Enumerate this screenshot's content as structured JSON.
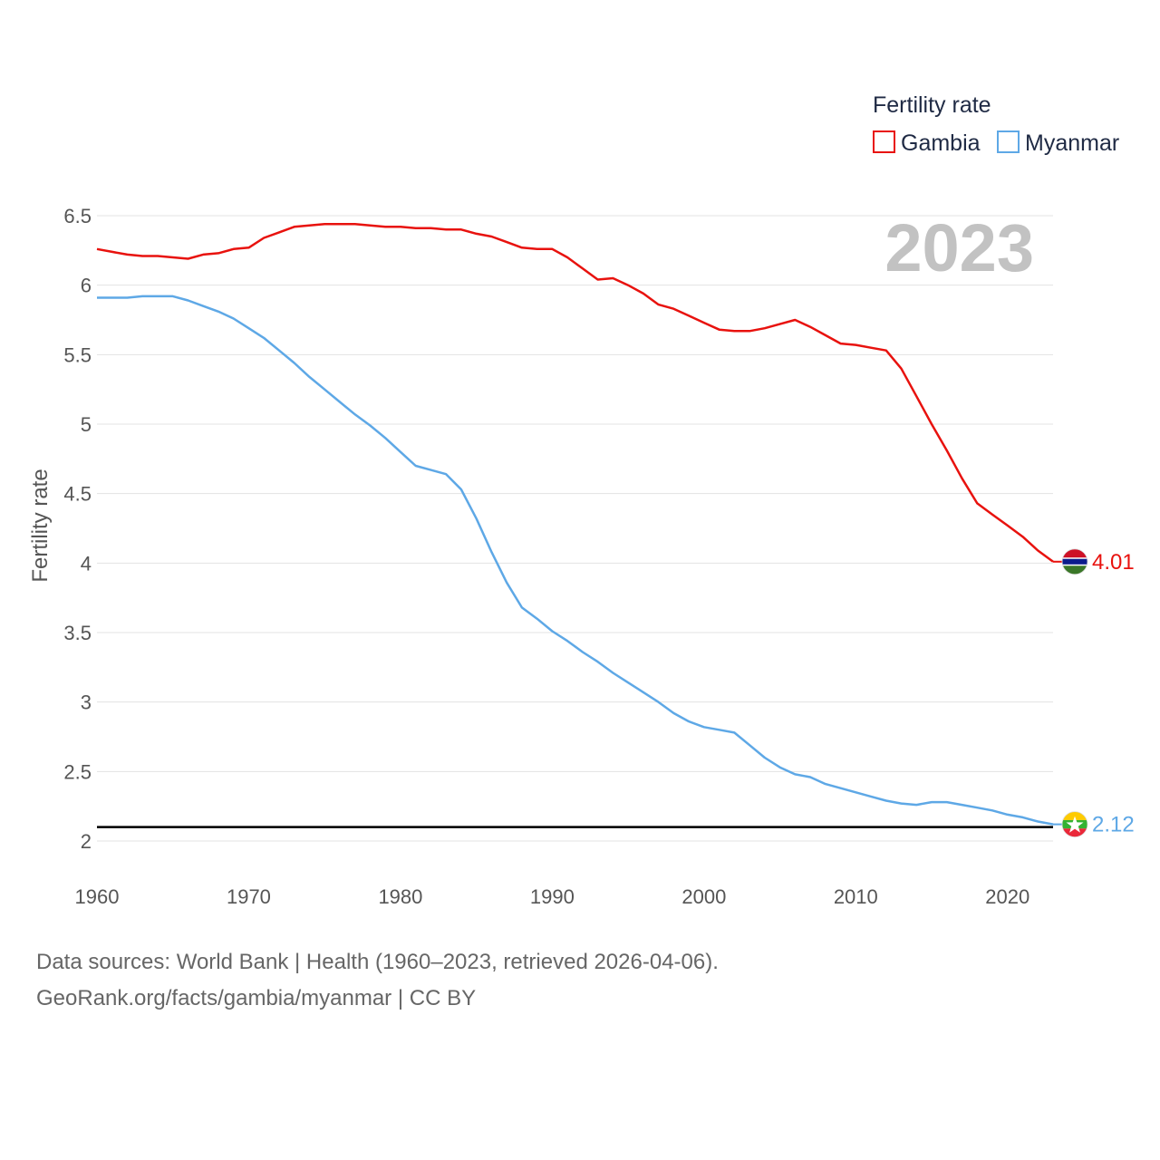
{
  "chart_data": {
    "type": "line",
    "title": "Fertility rate",
    "ylabel": "Fertility rate",
    "xlabel": "",
    "xlim": [
      1960,
      2023
    ],
    "ylim": [
      2,
      6.5
    ],
    "x_ticks": [
      1960,
      1970,
      1980,
      1990,
      2000,
      2010,
      2020
    ],
    "y_ticks": [
      2,
      2.5,
      3,
      3.5,
      4,
      4.5,
      5,
      5.5,
      6,
      6.5
    ],
    "y_tick_labels": [
      "2",
      "2.5",
      "3",
      "3.5",
      "4",
      "4.5",
      "5",
      "5.5",
      "6",
      "6.5"
    ],
    "year_label": "2023",
    "reference_line": {
      "value": 2.1,
      "color": "#000000"
    },
    "x": [
      1960,
      1961,
      1962,
      1963,
      1964,
      1965,
      1966,
      1967,
      1968,
      1969,
      1970,
      1971,
      1972,
      1973,
      1974,
      1975,
      1976,
      1977,
      1978,
      1979,
      1980,
      1981,
      1982,
      1983,
      1984,
      1985,
      1986,
      1987,
      1988,
      1989,
      1990,
      1991,
      1992,
      1993,
      1994,
      1995,
      1996,
      1997,
      1998,
      1999,
      2000,
      2001,
      2002,
      2003,
      2004,
      2005,
      2006,
      2007,
      2008,
      2009,
      2010,
      2011,
      2012,
      2013,
      2014,
      2015,
      2016,
      2017,
      2018,
      2019,
      2020,
      2021,
      2022,
      2023
    ],
    "series": [
      {
        "name": "Gambia",
        "color": "#e8120e",
        "end_label": "4.01",
        "flag": "gambia",
        "values": [
          6.26,
          6.24,
          6.22,
          6.21,
          6.21,
          6.2,
          6.19,
          6.22,
          6.23,
          6.26,
          6.27,
          6.34,
          6.38,
          6.42,
          6.43,
          6.44,
          6.44,
          6.44,
          6.43,
          6.42,
          6.42,
          6.41,
          6.41,
          6.4,
          6.4,
          6.37,
          6.35,
          6.31,
          6.27,
          6.26,
          6.26,
          6.2,
          6.12,
          6.04,
          6.05,
          6.0,
          5.94,
          5.86,
          5.83,
          5.78,
          5.73,
          5.68,
          5.67,
          5.67,
          5.69,
          5.72,
          5.75,
          5.7,
          5.64,
          5.58,
          5.57,
          5.55,
          5.53,
          5.4,
          5.2,
          5.0,
          4.81,
          4.61,
          4.43,
          4.35,
          4.27,
          4.19,
          4.09,
          4.01
        ]
      },
      {
        "name": "Myanmar",
        "color": "#5ea8e6",
        "end_label": "2.12",
        "flag": "myanmar",
        "values": [
          5.91,
          5.91,
          5.91,
          5.92,
          5.92,
          5.92,
          5.89,
          5.85,
          5.81,
          5.76,
          5.69,
          5.62,
          5.53,
          5.44,
          5.34,
          5.25,
          5.16,
          5.07,
          4.99,
          4.9,
          4.8,
          4.7,
          4.67,
          4.64,
          4.53,
          4.32,
          4.08,
          3.86,
          3.68,
          3.6,
          3.51,
          3.44,
          3.36,
          3.29,
          3.21,
          3.14,
          3.07,
          3.0,
          2.92,
          2.86,
          2.82,
          2.8,
          2.78,
          2.69,
          2.6,
          2.53,
          2.48,
          2.46,
          2.41,
          2.38,
          2.35,
          2.32,
          2.29,
          2.27,
          2.26,
          2.28,
          2.28,
          2.26,
          2.24,
          2.22,
          2.19,
          2.17,
          2.14,
          2.12
        ]
      }
    ]
  },
  "footer": {
    "source_line": "Data sources: World Bank | Health (1960–2023, retrieved 2026-04-06).",
    "attribution_line": "GeoRank.org/facts/gambia/myanmar | CC BY"
  }
}
